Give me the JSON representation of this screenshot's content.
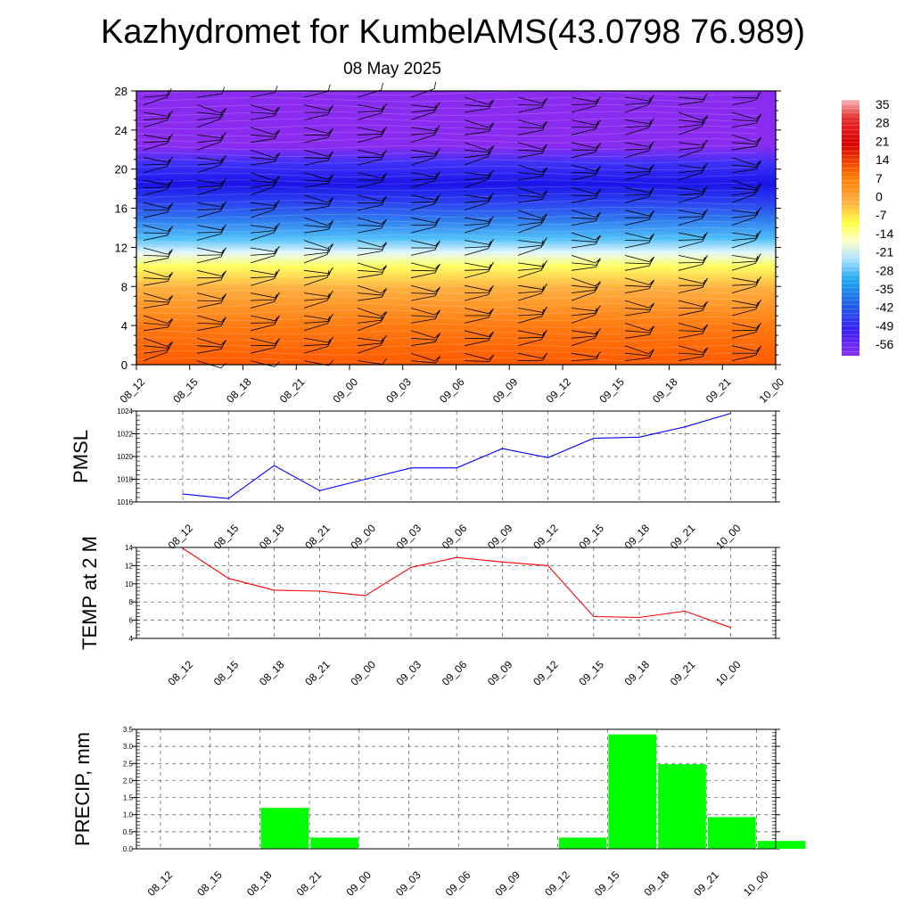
{
  "title": "Kazhydromet for KumbelAMS(43.0798 76.989)",
  "subtitle": "08 May 2025",
  "chart_data": [
    {
      "type": "heatmap",
      "name": "temperature-wind-cross-section",
      "x_ticks": [
        "08_12",
        "08_15",
        "08_18",
        "08_21",
        "09_00",
        "09_03",
        "09_06",
        "09_09",
        "09_12",
        "09_15",
        "09_18",
        "09_21",
        "10_00"
      ],
      "y_ticks": [
        0,
        4,
        8,
        12,
        16,
        20,
        24,
        28
      ],
      "ylim": [
        0,
        28
      ],
      "colorbar_labels": [
        "35",
        "28",
        "21",
        "14",
        "7",
        "0",
        "-7",
        "-14",
        "-21",
        "-28",
        "-35",
        "-42",
        "-49",
        "-56"
      ],
      "profile": [
        {
          "level": 0,
          "value": 14
        },
        {
          "level": 4,
          "value": 10
        },
        {
          "level": 8,
          "value": 0
        },
        {
          "level": 10.5,
          "value": -10
        },
        {
          "level": 12,
          "value": -20
        },
        {
          "level": 14,
          "value": -35
        },
        {
          "level": 16,
          "value": -49
        },
        {
          "level": 17.5,
          "value": -56
        },
        {
          "level": 19,
          "value": -60
        },
        {
          "level": 21,
          "value": -54
        },
        {
          "level": 28,
          "value": -54
        }
      ]
    },
    {
      "type": "line",
      "name": "pmsl",
      "ylabel": "PMSL",
      "categories": [
        "08_12",
        "08_15",
        "08_18",
        "08_21",
        "09_00",
        "09_03",
        "09_06",
        "09_09",
        "09_12",
        "09_15",
        "09_18",
        "09_21",
        "10_00"
      ],
      "values": [
        1016.7,
        1016.3,
        1019.2,
        1017.0,
        1018.0,
        1019.0,
        1019.0,
        1020.7,
        1019.9,
        1021.6,
        1021.7,
        1022.6,
        1023.8
      ],
      "ylim": [
        1016,
        1024
      ],
      "y_ticks": [
        1016,
        1018,
        1020,
        1022,
        1024
      ],
      "color": "#0000ff",
      "grid": true
    },
    {
      "type": "line",
      "name": "temp-2m",
      "ylabel": "TEMP at 2 M",
      "categories": [
        "08_12",
        "08_15",
        "08_18",
        "08_21",
        "09_00",
        "09_03",
        "09_06",
        "09_09",
        "09_12",
        "09_15",
        "09_18",
        "09_21",
        "10_00"
      ],
      "values": [
        13.9,
        10.6,
        9.3,
        9.2,
        8.7,
        11.8,
        12.9,
        12.4,
        12.0,
        6.4,
        6.3,
        7.0,
        5.2
      ],
      "ylim": [
        4,
        14
      ],
      "y_ticks": [
        4,
        6,
        8,
        10,
        12,
        14
      ],
      "color": "#ff0000",
      "grid": true
    },
    {
      "type": "bar",
      "name": "precip",
      "ylabel": "PRECIP, mm",
      "categories": [
        "08_12",
        "08_15",
        "08_18",
        "08_21",
        "09_00",
        "09_03",
        "09_06",
        "09_09",
        "09_12",
        "09_15",
        "09_18",
        "09_21",
        "10_00"
      ],
      "values": [
        0,
        0,
        1.2,
        0.33,
        0,
        0,
        0,
        0,
        0.33,
        3.35,
        2.48,
        0.93,
        0.23
      ],
      "ylim": [
        0,
        3.5
      ],
      "y_ticks": [
        "0.0",
        "0.5",
        "1.0",
        "1.5",
        "2.0",
        "2.5",
        "3.0",
        "3.5"
      ],
      "color": "#00ff00",
      "grid": true
    }
  ]
}
